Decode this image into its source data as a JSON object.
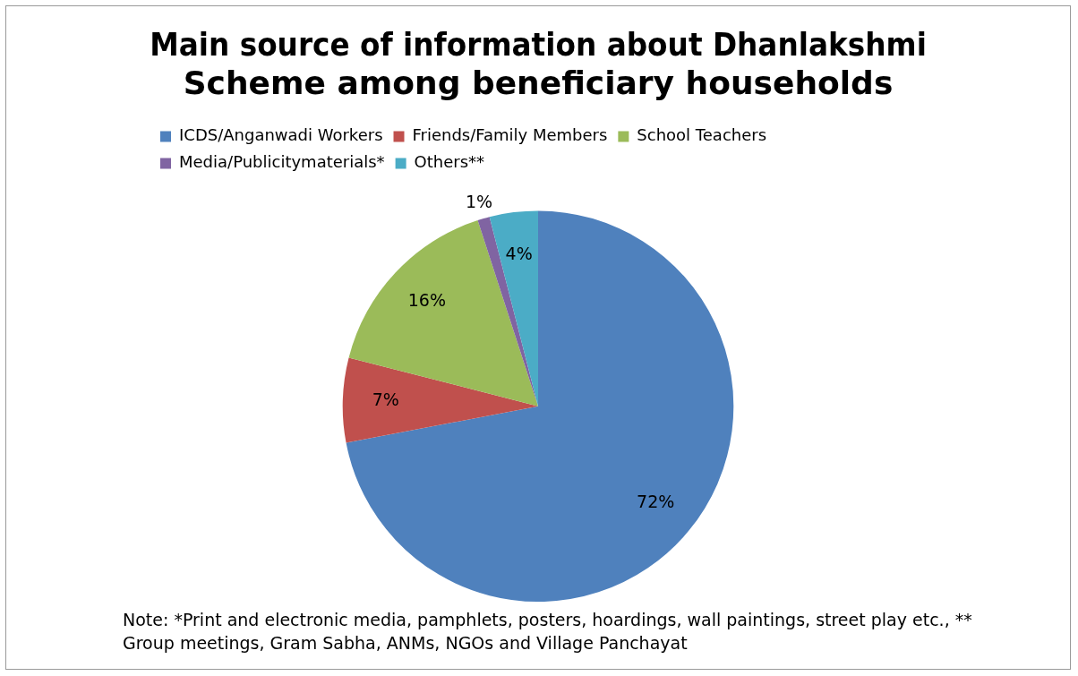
{
  "chart_data": {
    "type": "pie",
    "title": [
      "Main source of information about Dhanlakshmi",
      "Scheme among beneficiary households"
    ],
    "categories": [
      "ICDS/Anganwadi Workers",
      "Friends/Family Members",
      "School Teachers",
      "Media/Publicitymaterials*",
      "Others**"
    ],
    "values": [
      72,
      7,
      16,
      1,
      4
    ],
    "colors": [
      "#4f81bd",
      "#c0504d",
      "#9bbb59",
      "#8064a2",
      "#4bacc6"
    ],
    "value_labels": [
      "72%",
      "7%",
      "16%",
      "1%",
      "4%"
    ],
    "legend": "top",
    "annotations": [
      "Note: *Print and electronic media, pamphlets, posters, hoardings, wall paintings, street play etc.,  ** Group meetings, Gram Sabha, ANMs, NGOs and Village Panchayat"
    ]
  }
}
